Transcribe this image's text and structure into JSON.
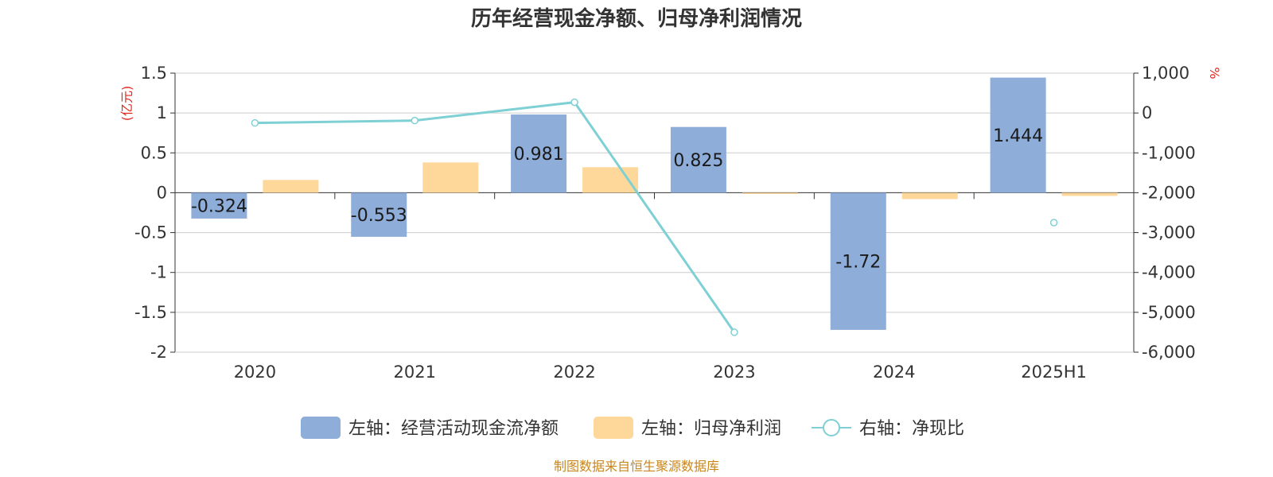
{
  "chart_data": {
    "type": "bar",
    "title": "历年经营现金净额、归母净利润情况",
    "categories": [
      "2020",
      "2021",
      "2022",
      "2023",
      "2024",
      "2025H1"
    ],
    "left_unit": "(亿元)",
    "right_unit": "%",
    "left_axis": {
      "min": -2,
      "max": 1.5,
      "ticks": [
        1.5,
        1,
        0.5,
        0,
        -0.5,
        -1,
        -1.5,
        -2
      ],
      "tick_labels": [
        "1.5",
        "1",
        "0.5",
        "0",
        "-0.5",
        "-1",
        "-1.5",
        "-2"
      ]
    },
    "right_axis": {
      "min": -6000,
      "max": 1000,
      "ticks": [
        1000,
        0,
        -1000,
        -2000,
        -3000,
        -4000,
        -5000,
        -6000
      ],
      "tick_labels": [
        "1,000",
        "0",
        "-1,000",
        "-2,000",
        "-3,000",
        "-4,000",
        "-5,000",
        "-6,000"
      ]
    },
    "grid": true,
    "legend_position": "bottom",
    "series": [
      {
        "name": "左轴：经营活动现金流净额",
        "type": "bar",
        "axis": "left",
        "color": "#8eadd9",
        "values": [
          -0.324,
          -0.553,
          0.981,
          0.825,
          -1.72,
          1.444
        ],
        "labels": [
          "-0.324",
          "-0.553",
          "0.981",
          "0.825",
          "-1.72",
          "1.444"
        ]
      },
      {
        "name": "左轴：归母净利润",
        "type": "bar",
        "axis": "left",
        "color": "#fdd89a",
        "values": [
          0.16,
          0.38,
          0.32,
          -0.01,
          -0.08,
          -0.04
        ]
      },
      {
        "name": "右轴：净现比",
        "type": "line",
        "axis": "right",
        "color": "#7fd0d4",
        "values": [
          -250,
          -190,
          270,
          -5500,
          null,
          -2750
        ]
      }
    ]
  },
  "source": "制图数据来自恒生聚源数据库"
}
